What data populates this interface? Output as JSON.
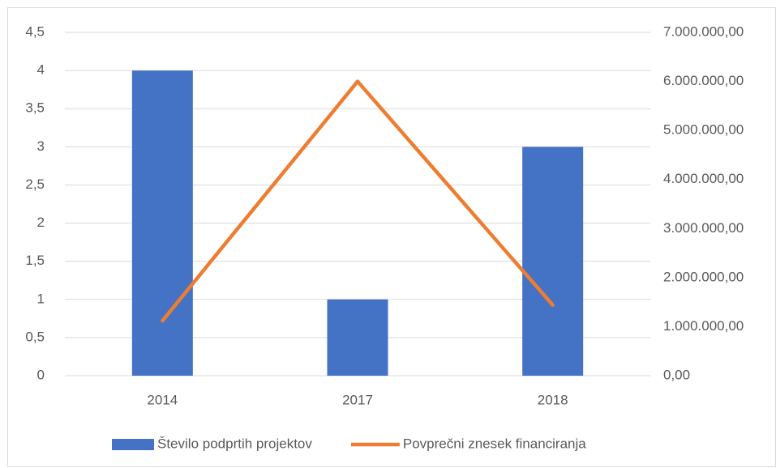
{
  "chart_data": {
    "type": "combo",
    "categories": [
      "2014",
      "2017",
      "2018"
    ],
    "series": [
      {
        "name": "Število podprtih projektov",
        "type": "bar",
        "color": "#4472c4",
        "values": [
          4,
          1,
          3
        ]
      },
      {
        "name": "Povprečni znesek financiranja",
        "type": "line",
        "axis": "y2",
        "color": "#ed7d31",
        "values": [
          1120000,
          6000000,
          1440000
        ]
      }
    ],
    "ylim": [
      0,
      4.5
    ],
    "yticks": [
      0,
      {
        "value": 0.5,
        "label": "0,5"
      },
      1,
      {
        "value": 1.5,
        "label": "1,5"
      },
      2,
      {
        "value": 2.5,
        "label": "2,5"
      },
      3,
      {
        "value": 3.5,
        "label": "3,5"
      },
      4,
      {
        "value": 4.5,
        "label": "4,5"
      }
    ],
    "y2lim": [
      0,
      7000000
    ],
    "y2ticks": [
      {
        "value": 0,
        "label": "0,00"
      },
      {
        "value": 1000000,
        "label": "1.000.000,00"
      },
      {
        "value": 2000000,
        "label": "2.000.000,00"
      },
      {
        "value": 3000000,
        "label": "3.000.000,00"
      },
      {
        "value": 4000000,
        "label": "4.000.000,00"
      },
      {
        "value": 5000000,
        "label": "5.000.000,00"
      },
      {
        "value": 6000000,
        "label": "6.000.000,00"
      },
      {
        "value": 7000000,
        "label": "7.000.000,00"
      }
    ],
    "grid": true,
    "legend": "bottom"
  }
}
